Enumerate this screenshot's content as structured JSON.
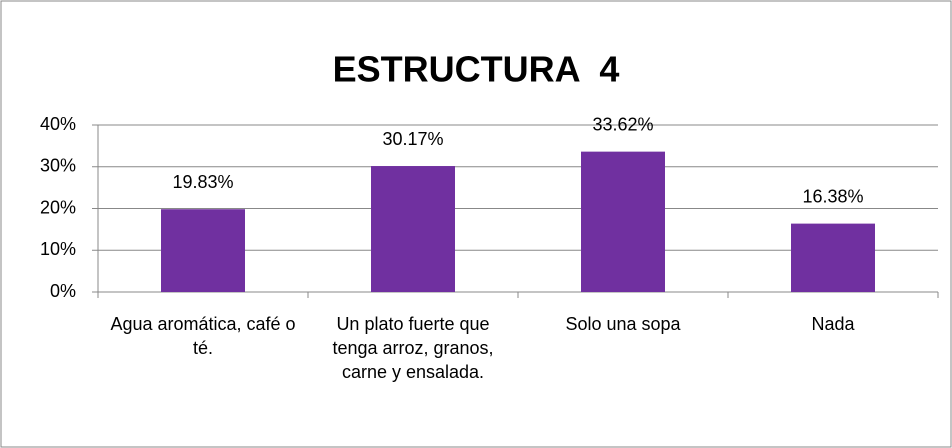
{
  "chart_data": {
    "type": "bar",
    "title": "ESTRUCTURA  4",
    "categories": [
      "Agua aromática, café o té.",
      "Un plato fuerte que tenga arroz, granos, carne y ensalada.",
      "Solo una sopa",
      "Nada"
    ],
    "values": [
      19.83,
      30.17,
      33.62,
      16.38
    ],
    "value_labels": [
      "19.83%",
      "30.17%",
      "33.62%",
      "16.38%"
    ],
    "color": "#7030a0",
    "ylim": [
      0,
      40
    ],
    "yticks": [
      {
        "value": 0,
        "label": "0%"
      },
      {
        "value": 10,
        "label": "10%"
      },
      {
        "value": 20,
        "label": "20%"
      },
      {
        "value": 30,
        "label": "30%"
      },
      {
        "value": 40,
        "label": "40%"
      }
    ],
    "grid": true
  }
}
